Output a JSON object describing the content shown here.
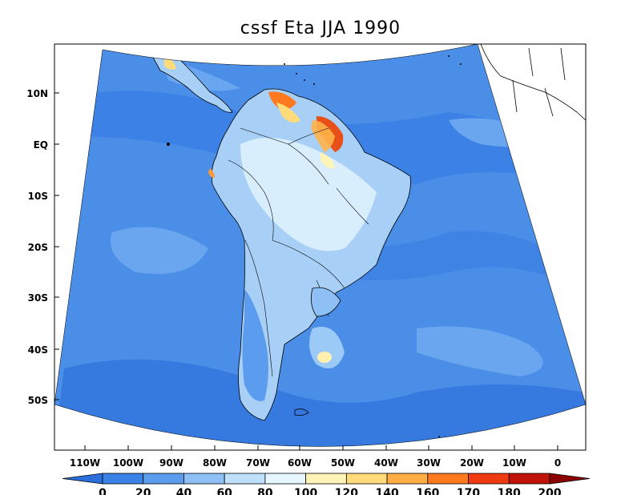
{
  "title": "cssf Eta JJA 1990",
  "map": {
    "lat_labels": [
      "10N",
      "EQ",
      "10S",
      "20S",
      "30S",
      "40S",
      "50S"
    ],
    "lon_labels": [
      "110W",
      "100W",
      "90W",
      "80W",
      "70W",
      "60W",
      "50W",
      "40W",
      "30W",
      "20W",
      "10W",
      "0"
    ]
  },
  "colorbar": {
    "levels": [
      "0",
      "20",
      "40",
      "60",
      "80",
      "100",
      "120",
      "140",
      "160",
      "170",
      "180",
      "200"
    ],
    "colors": [
      "#2a6fdb",
      "#3b82e6",
      "#5c9cee",
      "#8fc0f5",
      "#bfe0fb",
      "#e6f6ff",
      "#fff4b8",
      "#ffdb7a",
      "#ffad45",
      "#ff7a1f",
      "#f03a12",
      "#c01208",
      "#8b0000"
    ]
  },
  "colors": {
    "ocean_base": "#4a8ee8",
    "deep_band": "#3272dc",
    "land_light": "#a8d0f6",
    "land_pale": "#d9eefc",
    "hot_high": "#e8501a",
    "hot_mid": "#ffb24a",
    "outline": "#000000"
  }
}
